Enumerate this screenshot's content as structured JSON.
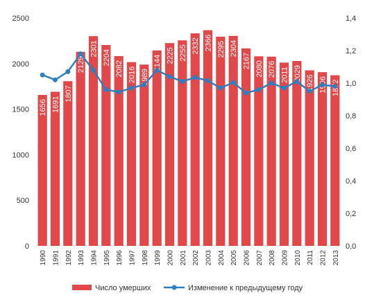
{
  "chart_data": {
    "type": "bar",
    "categories": [
      "1990",
      "1991",
      "1992",
      "1993",
      "1994",
      "1995",
      "1996",
      "1997",
      "1998",
      "1999",
      "2000",
      "2001",
      "2002",
      "2003",
      "2004",
      "2005",
      "2006",
      "2007",
      "2008",
      "2009",
      "2010",
      "2011",
      "2012",
      "2013"
    ],
    "series": [
      {
        "name": "Число умерших",
        "type": "bar",
        "axis": "left",
        "color": "#E0484A",
        "values": [
          1656,
          1691,
          1807,
          2129,
          2301,
          2204,
          2082,
          2016,
          1989,
          2144,
          2225,
          2255,
          2332,
          2366,
          2295,
          2304,
          2167,
          2080,
          2076,
          2011,
          2029,
          1926,
          1906,
          1872
        ]
      },
      {
        "name": "Изменение к предыдущему году",
        "type": "line",
        "axis": "right",
        "color": "#2E7FC0",
        "values": [
          1.05,
          1.02,
          1.07,
          1.18,
          1.08,
          0.96,
          0.945,
          0.97,
          0.99,
          1.08,
          1.04,
          1.01,
          1.035,
          1.015,
          0.97,
          1.004,
          0.94,
          0.96,
          1.0,
          0.97,
          1.01,
          0.95,
          0.99,
          0.98
        ]
      }
    ],
    "yaxis_left": {
      "ylim": [
        0,
        2500
      ],
      "ticks": [
        "0",
        "500",
        "1000",
        "1500",
        "2000",
        "2500"
      ]
    },
    "yaxis_right": {
      "ylim": [
        0,
        1.4
      ],
      "ticks": [
        "0,0",
        "0,2",
        "0,4",
        "0,6",
        "0,8",
        "1,0",
        "1,2",
        "1,4"
      ]
    },
    "grid": false,
    "legend": "bottom",
    "title": "",
    "xlabel": "",
    "ylabel": ""
  }
}
